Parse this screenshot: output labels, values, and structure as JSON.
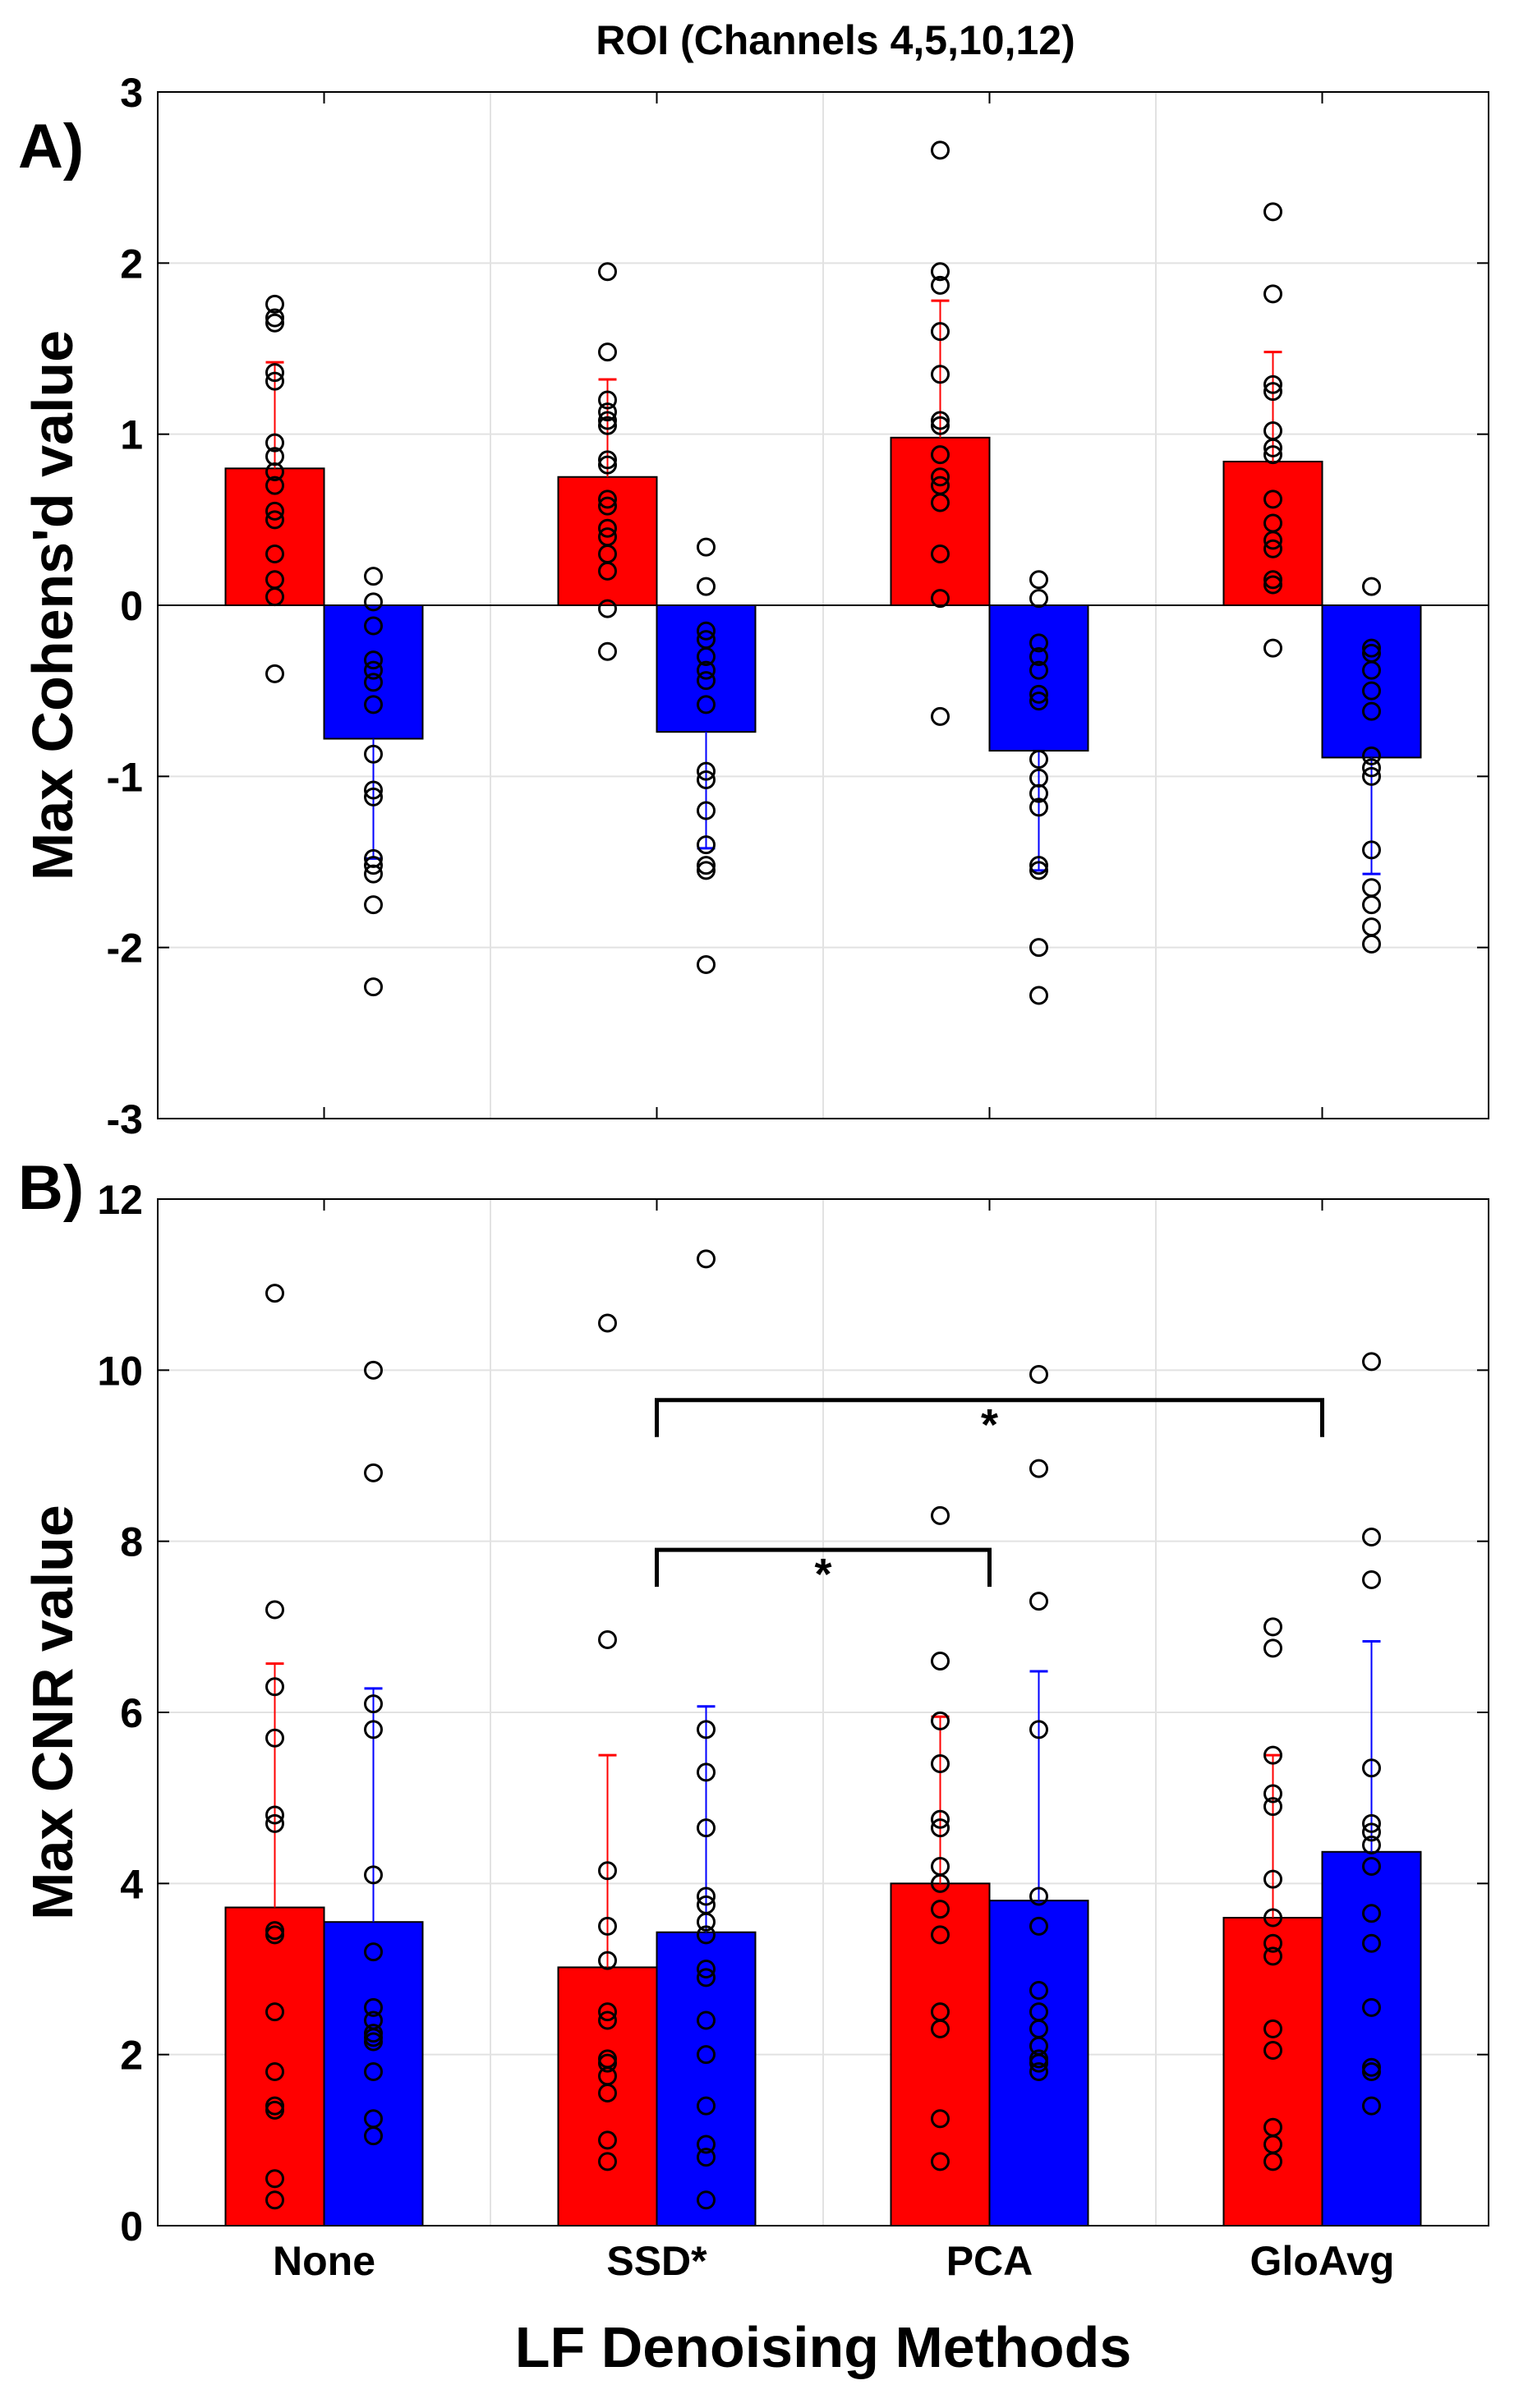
{
  "figure_title": "ROI (Channels 4,5,10,12)",
  "colors": {
    "cond1": "#ff0000",
    "cond2": "#0000ff",
    "grid": "#e2e2e2",
    "point": "#000000"
  },
  "chart_data": [
    {
      "id": "A",
      "panel_label": "A)",
      "type": "bar",
      "ylabel": "Max Cohens'd value",
      "xlabel": "",
      "ylim": [
        -3,
        3
      ],
      "yticks": [
        -3,
        -2,
        -1,
        0,
        1,
        2,
        3
      ],
      "grid": true,
      "categories": [
        "None",
        "SSD*",
        "PCA",
        "GloAvg"
      ],
      "series": [
        {
          "name": "red",
          "color": "#ff0000",
          "values": [
            0.8,
            0.75,
            0.98,
            0.84
          ],
          "err_high": [
            1.42,
            1.32,
            1.78,
            1.48
          ]
        },
        {
          "name": "blue",
          "color": "#0000ff",
          "values": [
            -0.78,
            -0.74,
            -0.85,
            -0.89
          ],
          "err_low": [
            -1.48,
            -1.42,
            -1.55,
            -1.57
          ]
        }
      ],
      "points": [
        [
          [
            1.76,
            1.68,
            1.65,
            1.36,
            1.31,
            0.95,
            0.87,
            0.78,
            0.7,
            0.55,
            0.5,
            0.3,
            0.15,
            0.05,
            -0.4
          ],
          [
            0.17,
            0.02,
            -0.12,
            -0.32,
            -0.38,
            -0.45,
            -0.58,
            -0.87,
            -1.08,
            -1.12,
            -1.48,
            -1.52,
            -1.57,
            -1.75,
            -2.23
          ]
        ],
        [
          [
            1.95,
            1.48,
            1.2,
            1.13,
            1.08,
            1.05,
            0.85,
            0.82,
            0.62,
            0.58,
            0.45,
            0.4,
            0.3,
            0.2,
            -0.02,
            -0.27
          ],
          [
            0.34,
            0.11,
            -0.15,
            -0.2,
            -0.3,
            -0.38,
            -0.44,
            -0.58,
            -0.97,
            -1.02,
            -1.2,
            -1.4,
            -1.52,
            -1.55,
            -2.1
          ]
        ],
        [
          [
            2.66,
            1.95,
            1.87,
            1.6,
            1.35,
            1.08,
            1.05,
            0.88,
            0.75,
            0.7,
            0.6,
            0.3,
            0.04,
            -0.65
          ],
          [
            0.15,
            0.04,
            -0.22,
            -0.3,
            -0.38,
            -0.52,
            -0.56,
            -0.9,
            -1.01,
            -1.1,
            -1.18,
            -1.52,
            -1.55,
            -2.0,
            -2.28
          ]
        ],
        [
          [
            2.3,
            1.82,
            1.29,
            1.25,
            1.02,
            0.92,
            0.88,
            0.62,
            0.48,
            0.38,
            0.33,
            0.15,
            0.12,
            -0.25
          ],
          [
            0.11,
            -0.25,
            -0.28,
            -0.38,
            -0.5,
            -0.62,
            -0.88,
            -0.95,
            -1.0,
            -1.43,
            -1.65,
            -1.75,
            -1.88,
            -1.98
          ]
        ]
      ]
    },
    {
      "id": "B",
      "panel_label": "B)",
      "type": "bar",
      "ylabel": "Max CNR value",
      "xlabel": "LF Denoising Methods",
      "ylim": [
        0,
        12
      ],
      "yticks": [
        0,
        2,
        4,
        6,
        8,
        10,
        12
      ],
      "grid": true,
      "categories": [
        "None",
        "SSD*",
        "PCA",
        "GloAvg"
      ],
      "series": [
        {
          "name": "red",
          "color": "#ff0000",
          "values": [
            3.72,
            3.02,
            4.0,
            3.6
          ],
          "err_high": [
            6.57,
            5.5,
            5.95,
            5.5
          ]
        },
        {
          "name": "blue",
          "color": "#0000ff",
          "values": [
            3.55,
            3.43,
            3.8,
            4.37
          ],
          "err_high": [
            6.28,
            6.07,
            6.48,
            6.83
          ]
        }
      ],
      "points": [
        [
          [
            10.9,
            7.2,
            6.3,
            5.7,
            4.8,
            4.7,
            3.45,
            3.4,
            2.5,
            1.8,
            1.4,
            1.35,
            0.55,
            0.3
          ],
          [
            10.0,
            8.8,
            6.1,
            5.8,
            4.1,
            3.2,
            2.55,
            2.4,
            2.25,
            2.2,
            2.15,
            1.8,
            1.25,
            1.05
          ]
        ],
        [
          [
            10.55,
            6.85,
            4.15,
            3.5,
            3.1,
            2.5,
            2.4,
            1.95,
            1.9,
            1.75,
            1.55,
            1.0,
            0.75
          ],
          [
            11.3,
            5.8,
            5.3,
            4.65,
            3.85,
            3.75,
            3.55,
            3.4,
            3.0,
            2.9,
            2.4,
            2.0,
            1.4,
            0.95,
            0.8,
            0.3
          ]
        ],
        [
          [
            8.3,
            6.6,
            5.9,
            5.4,
            4.75,
            4.65,
            4.2,
            4.0,
            3.7,
            3.4,
            2.5,
            2.3,
            1.25,
            0.75
          ],
          [
            9.95,
            8.85,
            7.3,
            5.8,
            3.85,
            3.5,
            2.75,
            2.5,
            2.3,
            2.1,
            1.95,
            1.9,
            1.8
          ]
        ],
        [
          [
            7.0,
            6.75,
            5.5,
            5.05,
            4.9,
            4.05,
            3.6,
            3.3,
            3.15,
            2.3,
            2.05,
            1.15,
            0.95,
            0.75
          ],
          [
            10.1,
            8.05,
            7.55,
            5.35,
            4.7,
            4.6,
            4.45,
            4.2,
            3.65,
            3.3,
            2.55,
            1.85,
            1.8,
            1.4
          ]
        ]
      ],
      "brackets": [
        {
          "from": 1,
          "to": 2,
          "y": 7.9,
          "label": "*"
        },
        {
          "from": 1,
          "to": 3,
          "y": 9.65,
          "label": "*"
        }
      ]
    }
  ]
}
